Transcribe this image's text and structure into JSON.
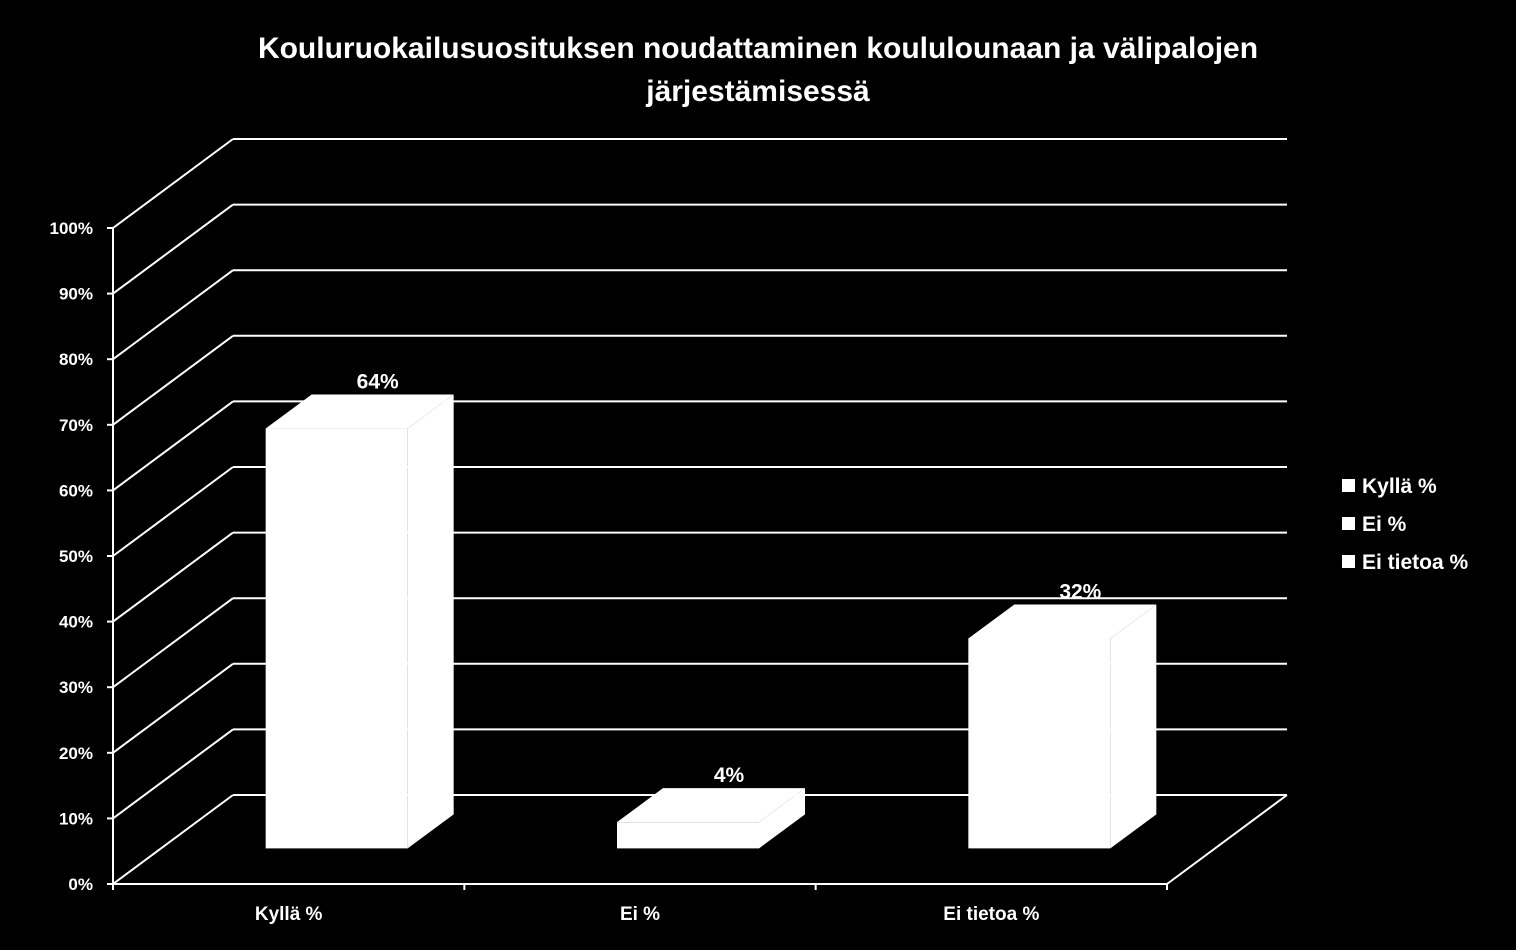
{
  "chart_data": {
    "type": "bar",
    "title_lines": [
      "Kouluruokailusuosituksen noudattaminen koululounaan ja välipalojen",
      "järjestämisessä"
    ],
    "categories": [
      "Kyllä %",
      "Ei %",
      "Ei tietoa %"
    ],
    "values": [
      64,
      4,
      32
    ],
    "value_labels": [
      "64%",
      "4%",
      "32%"
    ],
    "ylim": [
      0,
      100
    ],
    "y_ticks": [
      "0%",
      "10%",
      "20%",
      "30%",
      "40%",
      "50%",
      "60%",
      "70%",
      "80%",
      "90%",
      "100%"
    ],
    "legend": [
      "Kyllä %",
      "Ei %",
      "Ei tietoa %"
    ],
    "legend_position": "right",
    "grid": true,
    "style": "3d",
    "colors": {
      "background": "#000000",
      "bar": "#ffffff",
      "grid": "#ffffff",
      "text": "#ffffff"
    }
  }
}
